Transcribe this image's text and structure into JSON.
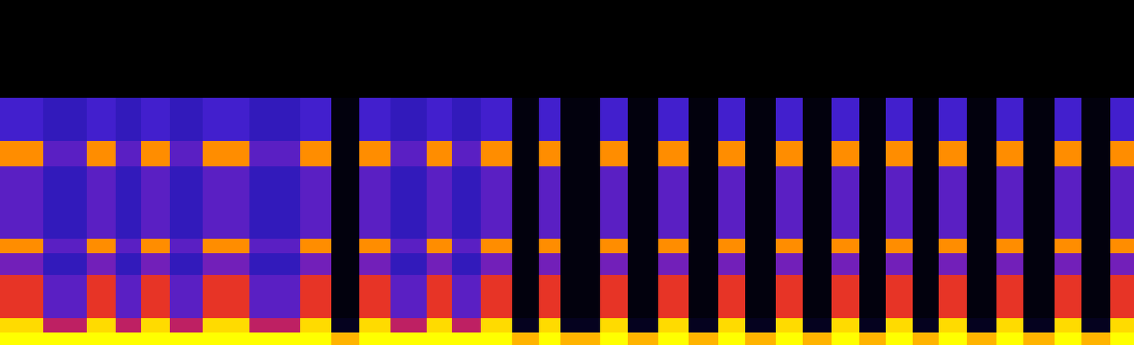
{
  "chart_data": {
    "type": "heatmap",
    "x_edges": [
      0,
      60,
      120,
      160,
      195,
      235,
      280,
      345,
      415,
      458,
      497,
      540,
      590,
      625,
      665,
      708,
      745,
      775,
      830,
      868,
      910,
      952,
      993,
      1030,
      1073,
      1110,
      1150,
      1188,
      1225,
      1262,
      1298,
      1337,
      1378,
      1415,
      1458,
      1495,
      1535,
      1568
    ],
    "y_edges": [
      0,
      17,
      37,
      97,
      127,
      147,
      247,
      282,
      342,
      477
    ],
    "cells": [
      [
        1.0,
        1.0,
        1.0,
        1.0,
        1.0,
        1.0,
        1.0,
        1.0,
        1.0,
        0.9,
        1.0,
        1.0,
        1.0,
        1.0,
        1.0,
        0.9,
        1.0,
        0.9,
        1.0,
        0.9,
        1.0,
        0.9,
        1.0,
        0.9,
        1.0,
        0.9,
        1.0,
        0.9,
        1.0,
        0.9,
        1.0,
        0.9,
        1.0,
        0.9,
        1.0,
        0.9,
        1.0
      ],
      [
        0.95,
        0.6,
        0.95,
        0.6,
        0.95,
        0.6,
        0.95,
        0.6,
        0.95,
        0.05,
        0.95,
        0.6,
        0.95,
        0.6,
        0.95,
        0.05,
        0.95,
        0.05,
        0.95,
        0.05,
        0.95,
        0.05,
        0.95,
        0.05,
        0.95,
        0.05,
        0.95,
        0.05,
        0.95,
        0.05,
        0.95,
        0.05,
        0.95,
        0.05,
        0.95,
        0.05,
        0.95
      ],
      [
        0.7,
        0.4,
        0.7,
        0.4,
        0.7,
        0.4,
        0.7,
        0.4,
        0.7,
        0.02,
        0.7,
        0.4,
        0.7,
        0.4,
        0.7,
        0.02,
        0.7,
        0.02,
        0.7,
        0.02,
        0.7,
        0.02,
        0.7,
        0.02,
        0.7,
        0.02,
        0.7,
        0.02,
        0.7,
        0.02,
        0.7,
        0.02,
        0.7,
        0.02,
        0.7,
        0.02,
        0.7
      ],
      [
        0.45,
        0.3,
        0.45,
        0.3,
        0.45,
        0.3,
        0.45,
        0.3,
        0.45,
        0.02,
        0.45,
        0.3,
        0.45,
        0.3,
        0.45,
        0.02,
        0.45,
        0.02,
        0.45,
        0.02,
        0.45,
        0.02,
        0.45,
        0.02,
        0.45,
        0.02,
        0.45,
        0.02,
        0.45,
        0.02,
        0.45,
        0.02,
        0.45,
        0.02,
        0.45,
        0.02,
        0.45
      ],
      [
        0.85,
        0.4,
        0.85,
        0.4,
        0.85,
        0.4,
        0.85,
        0.4,
        0.85,
        0.02,
        0.85,
        0.4,
        0.85,
        0.4,
        0.85,
        0.02,
        0.85,
        0.02,
        0.85,
        0.02,
        0.85,
        0.02,
        0.85,
        0.02,
        0.85,
        0.02,
        0.85,
        0.02,
        0.85,
        0.02,
        0.85,
        0.02,
        0.85,
        0.02,
        0.85,
        0.02,
        0.85
      ],
      [
        0.4,
        0.3,
        0.4,
        0.3,
        0.4,
        0.3,
        0.4,
        0.3,
        0.4,
        0.02,
        0.4,
        0.3,
        0.4,
        0.3,
        0.4,
        0.02,
        0.4,
        0.02,
        0.4,
        0.02,
        0.4,
        0.02,
        0.4,
        0.02,
        0.4,
        0.02,
        0.4,
        0.02,
        0.4,
        0.02,
        0.4,
        0.02,
        0.4,
        0.02,
        0.4,
        0.02,
        0.4
      ],
      [
        0.85,
        0.4,
        0.85,
        0.4,
        0.85,
        0.4,
        0.85,
        0.4,
        0.85,
        0.02,
        0.85,
        0.4,
        0.85,
        0.4,
        0.85,
        0.02,
        0.85,
        0.02,
        0.85,
        0.02,
        0.85,
        0.02,
        0.85,
        0.02,
        0.85,
        0.02,
        0.85,
        0.02,
        0.85,
        0.02,
        0.85,
        0.02,
        0.85,
        0.02,
        0.85,
        0.02,
        0.85
      ],
      [
        0.35,
        0.3,
        0.35,
        0.3,
        0.35,
        0.3,
        0.35,
        0.3,
        0.35,
        0.02,
        0.35,
        0.3,
        0.35,
        0.3,
        0.35,
        0.02,
        0.35,
        0.02,
        0.35,
        0.02,
        0.35,
        0.02,
        0.35,
        0.02,
        0.35,
        0.02,
        0.35,
        0.02,
        0.35,
        0.02,
        0.35,
        0.02,
        0.35,
        0.02,
        0.35,
        0.02,
        0.35
      ],
      [
        0.0,
        0.0,
        0.0,
        0.0,
        0.0,
        0.0,
        0.0,
        0.0,
        0.0,
        0.0,
        0.0,
        0.0,
        0.0,
        0.0,
        0.0,
        0.0,
        0.0,
        0.0,
        0.0,
        0.0,
        0.0,
        0.0,
        0.0,
        0.0,
        0.0,
        0.0,
        0.0,
        0.0,
        0.0,
        0.0,
        0.0,
        0.0,
        0.0,
        0.0,
        0.0,
        0.0,
        0.0
      ]
    ],
    "color_range": [
      0,
      1
    ],
    "xlim": [
      0,
      1568
    ],
    "ylim": [
      0,
      477
    ],
    "tick_labels": false
  }
}
